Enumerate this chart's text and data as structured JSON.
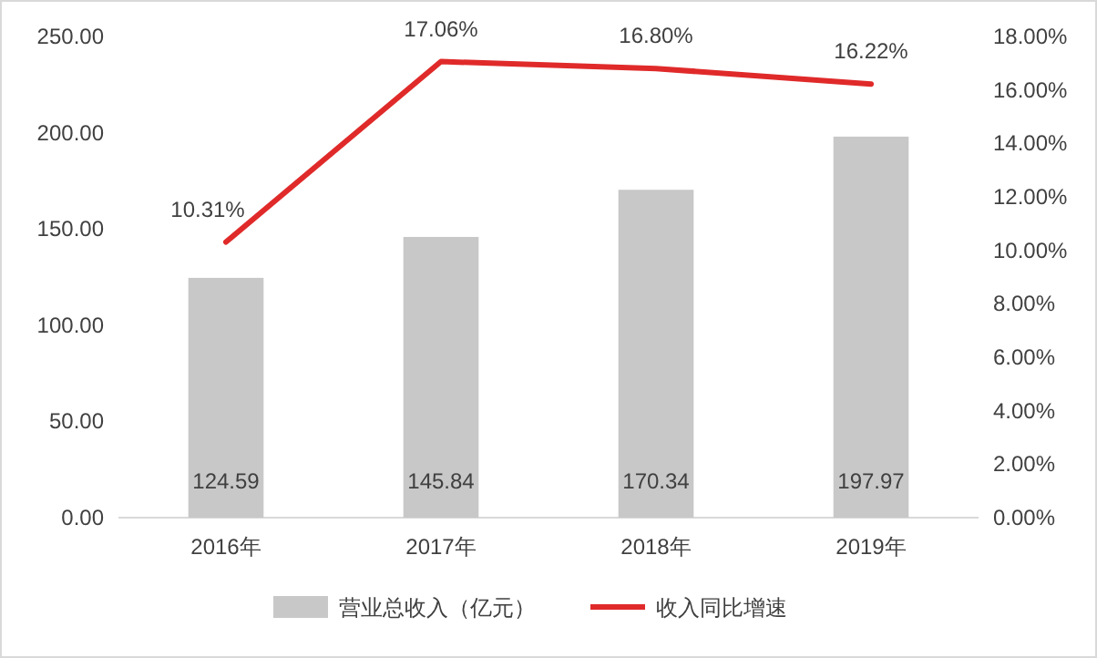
{
  "chart_data": {
    "type": "bar",
    "categories": [
      "2016年",
      "2017年",
      "2018年",
      "2019年"
    ],
    "series": [
      {
        "name": "营业总收入（亿元）",
        "color": "#c8c8c8",
        "values": [
          124.59,
          145.84,
          170.34,
          197.97
        ],
        "value_labels": [
          "124.59",
          "145.84",
          "170.34",
          "197.97"
        ]
      },
      {
        "name": "收入同比增速",
        "type": "line",
        "axis": "y2",
        "color": "#e02a2a",
        "values": [
          10.31,
          17.06,
          16.8,
          16.22
        ],
        "value_labels": [
          "10.31%",
          "17.06%",
          "16.80%",
          "16.22%"
        ],
        "marker": "none"
      }
    ],
    "ylim": [
      0,
      250
    ],
    "yticks": [
      {
        "value": 0,
        "label": "0.00"
      },
      {
        "value": 50,
        "label": "50.00"
      },
      {
        "value": 100,
        "label": "100.00"
      },
      {
        "value": 150,
        "label": "150.00"
      },
      {
        "value": 200,
        "label": "200.00"
      },
      {
        "value": 250,
        "label": "250.00"
      }
    ],
    "y2lim": [
      0,
      18
    ],
    "y2ticks": [
      {
        "value": 0,
        "label": "0.00%"
      },
      {
        "value": 2,
        "label": "2.00%"
      },
      {
        "value": 4,
        "label": "4.00%"
      },
      {
        "value": 6,
        "label": "6.00%"
      },
      {
        "value": 8,
        "label": "8.00%"
      },
      {
        "value": 10,
        "label": "10.00%"
      },
      {
        "value": 12,
        "label": "12.00%"
      },
      {
        "value": 14,
        "label": "14.00%"
      },
      {
        "value": 16,
        "label": "16.00%"
      },
      {
        "value": 18,
        "label": "18.00%"
      }
    ],
    "grid": false,
    "legend": "bottom"
  }
}
